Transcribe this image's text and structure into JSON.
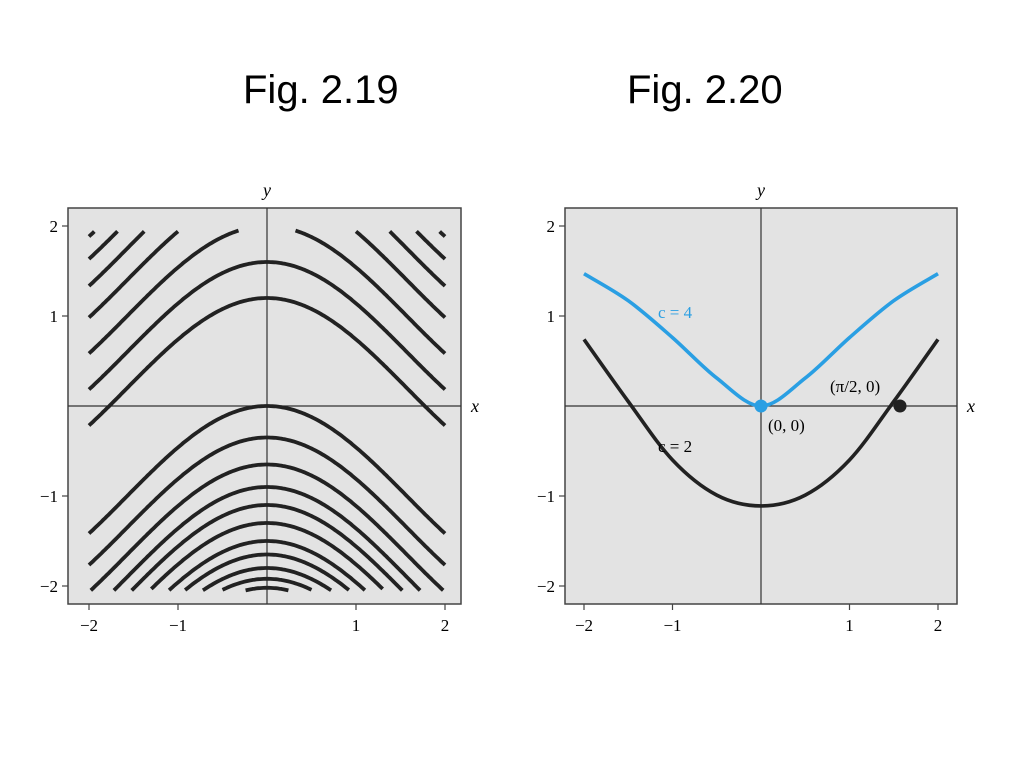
{
  "titles": {
    "left": "Fig. 2.19",
    "right": "Fig. 2.20"
  },
  "colors": {
    "background": "#ffffff",
    "panel": "#e3e3e3",
    "curve": "#222222",
    "highlight": "#2a9fe3"
  },
  "chart_data": [
    {
      "type": "line",
      "title": "Fig. 2.19",
      "xlabel": "x",
      "ylabel": "y",
      "xlim": [
        -2,
        2
      ],
      "ylim": [
        -2,
        2
      ],
      "xticks": [
        "-2",
        "-1",
        "1",
        "2"
      ],
      "yticks": [
        "2",
        "1",
        "-1",
        "-2"
      ],
      "xtick_values": [
        -2,
        -1,
        1,
        2
      ],
      "ytick_values": [
        2,
        1,
        -1,
        -2
      ],
      "grid": false,
      "family": "y = cos(x) + k, level curves",
      "series": [
        {
          "k": 0.2
        },
        {
          "k": 0.6
        },
        {
          "k": 1.0
        },
        {
          "k": 1.4
        },
        {
          "k": 1.75
        },
        {
          "k": 2.05
        },
        {
          "k": 2.3
        },
        {
          "k": 2.55
        },
        {
          "k": 2.75
        },
        {
          "k": 2.95
        },
        {
          "k": 3.15
        },
        {
          "k": -1.0
        },
        {
          "k": -1.35
        },
        {
          "k": -1.65
        },
        {
          "k": -1.9
        },
        {
          "k": -2.1
        },
        {
          "k": -2.3
        },
        {
          "k": -2.5
        },
        {
          "k": -2.65
        },
        {
          "k": -2.8
        },
        {
          "k": -2.92
        },
        {
          "k": -3.02
        },
        {
          "k": -3.1
        }
      ]
    },
    {
      "type": "line",
      "title": "Fig. 2.20",
      "xlabel": "x",
      "ylabel": "y",
      "xlim": [
        -2,
        2
      ],
      "ylim": [
        -2,
        2
      ],
      "xticks": [
        "-2",
        "-1",
        "1",
        "2"
      ],
      "yticks": [
        "2",
        "1",
        "-1",
        "-2"
      ],
      "xtick_values": [
        -2,
        -1,
        1,
        2
      ],
      "ytick_values": [
        2,
        1,
        -1,
        -2
      ],
      "grid": false,
      "series": [
        {
          "label": "c = 4",
          "color": "#2a9fe3",
          "x": [
            -2,
            -1.5,
            -1,
            -0.5,
            0,
            0.5,
            1,
            1.5,
            2
          ],
          "y": [
            1.47,
            1.17,
            0.76,
            0.31,
            0.0,
            0.31,
            0.76,
            1.17,
            1.47
          ]
        },
        {
          "label": "c = 2",
          "color": "#222222",
          "x": [
            -2,
            -1.5,
            -1,
            -0.5,
            0,
            0.5,
            1,
            1.5,
            2
          ],
          "y": [
            0.74,
            0.05,
            -0.6,
            -0.99,
            -1.11,
            -0.99,
            -0.6,
            0.05,
            0.74
          ]
        }
      ],
      "points": [
        {
          "label": "(0, 0)",
          "x": 0,
          "y": 0,
          "color": "#2a9fe3"
        },
        {
          "label": "(π/2, 0)",
          "x": 1.5708,
          "y": 0,
          "color": "#222222"
        }
      ]
    }
  ]
}
